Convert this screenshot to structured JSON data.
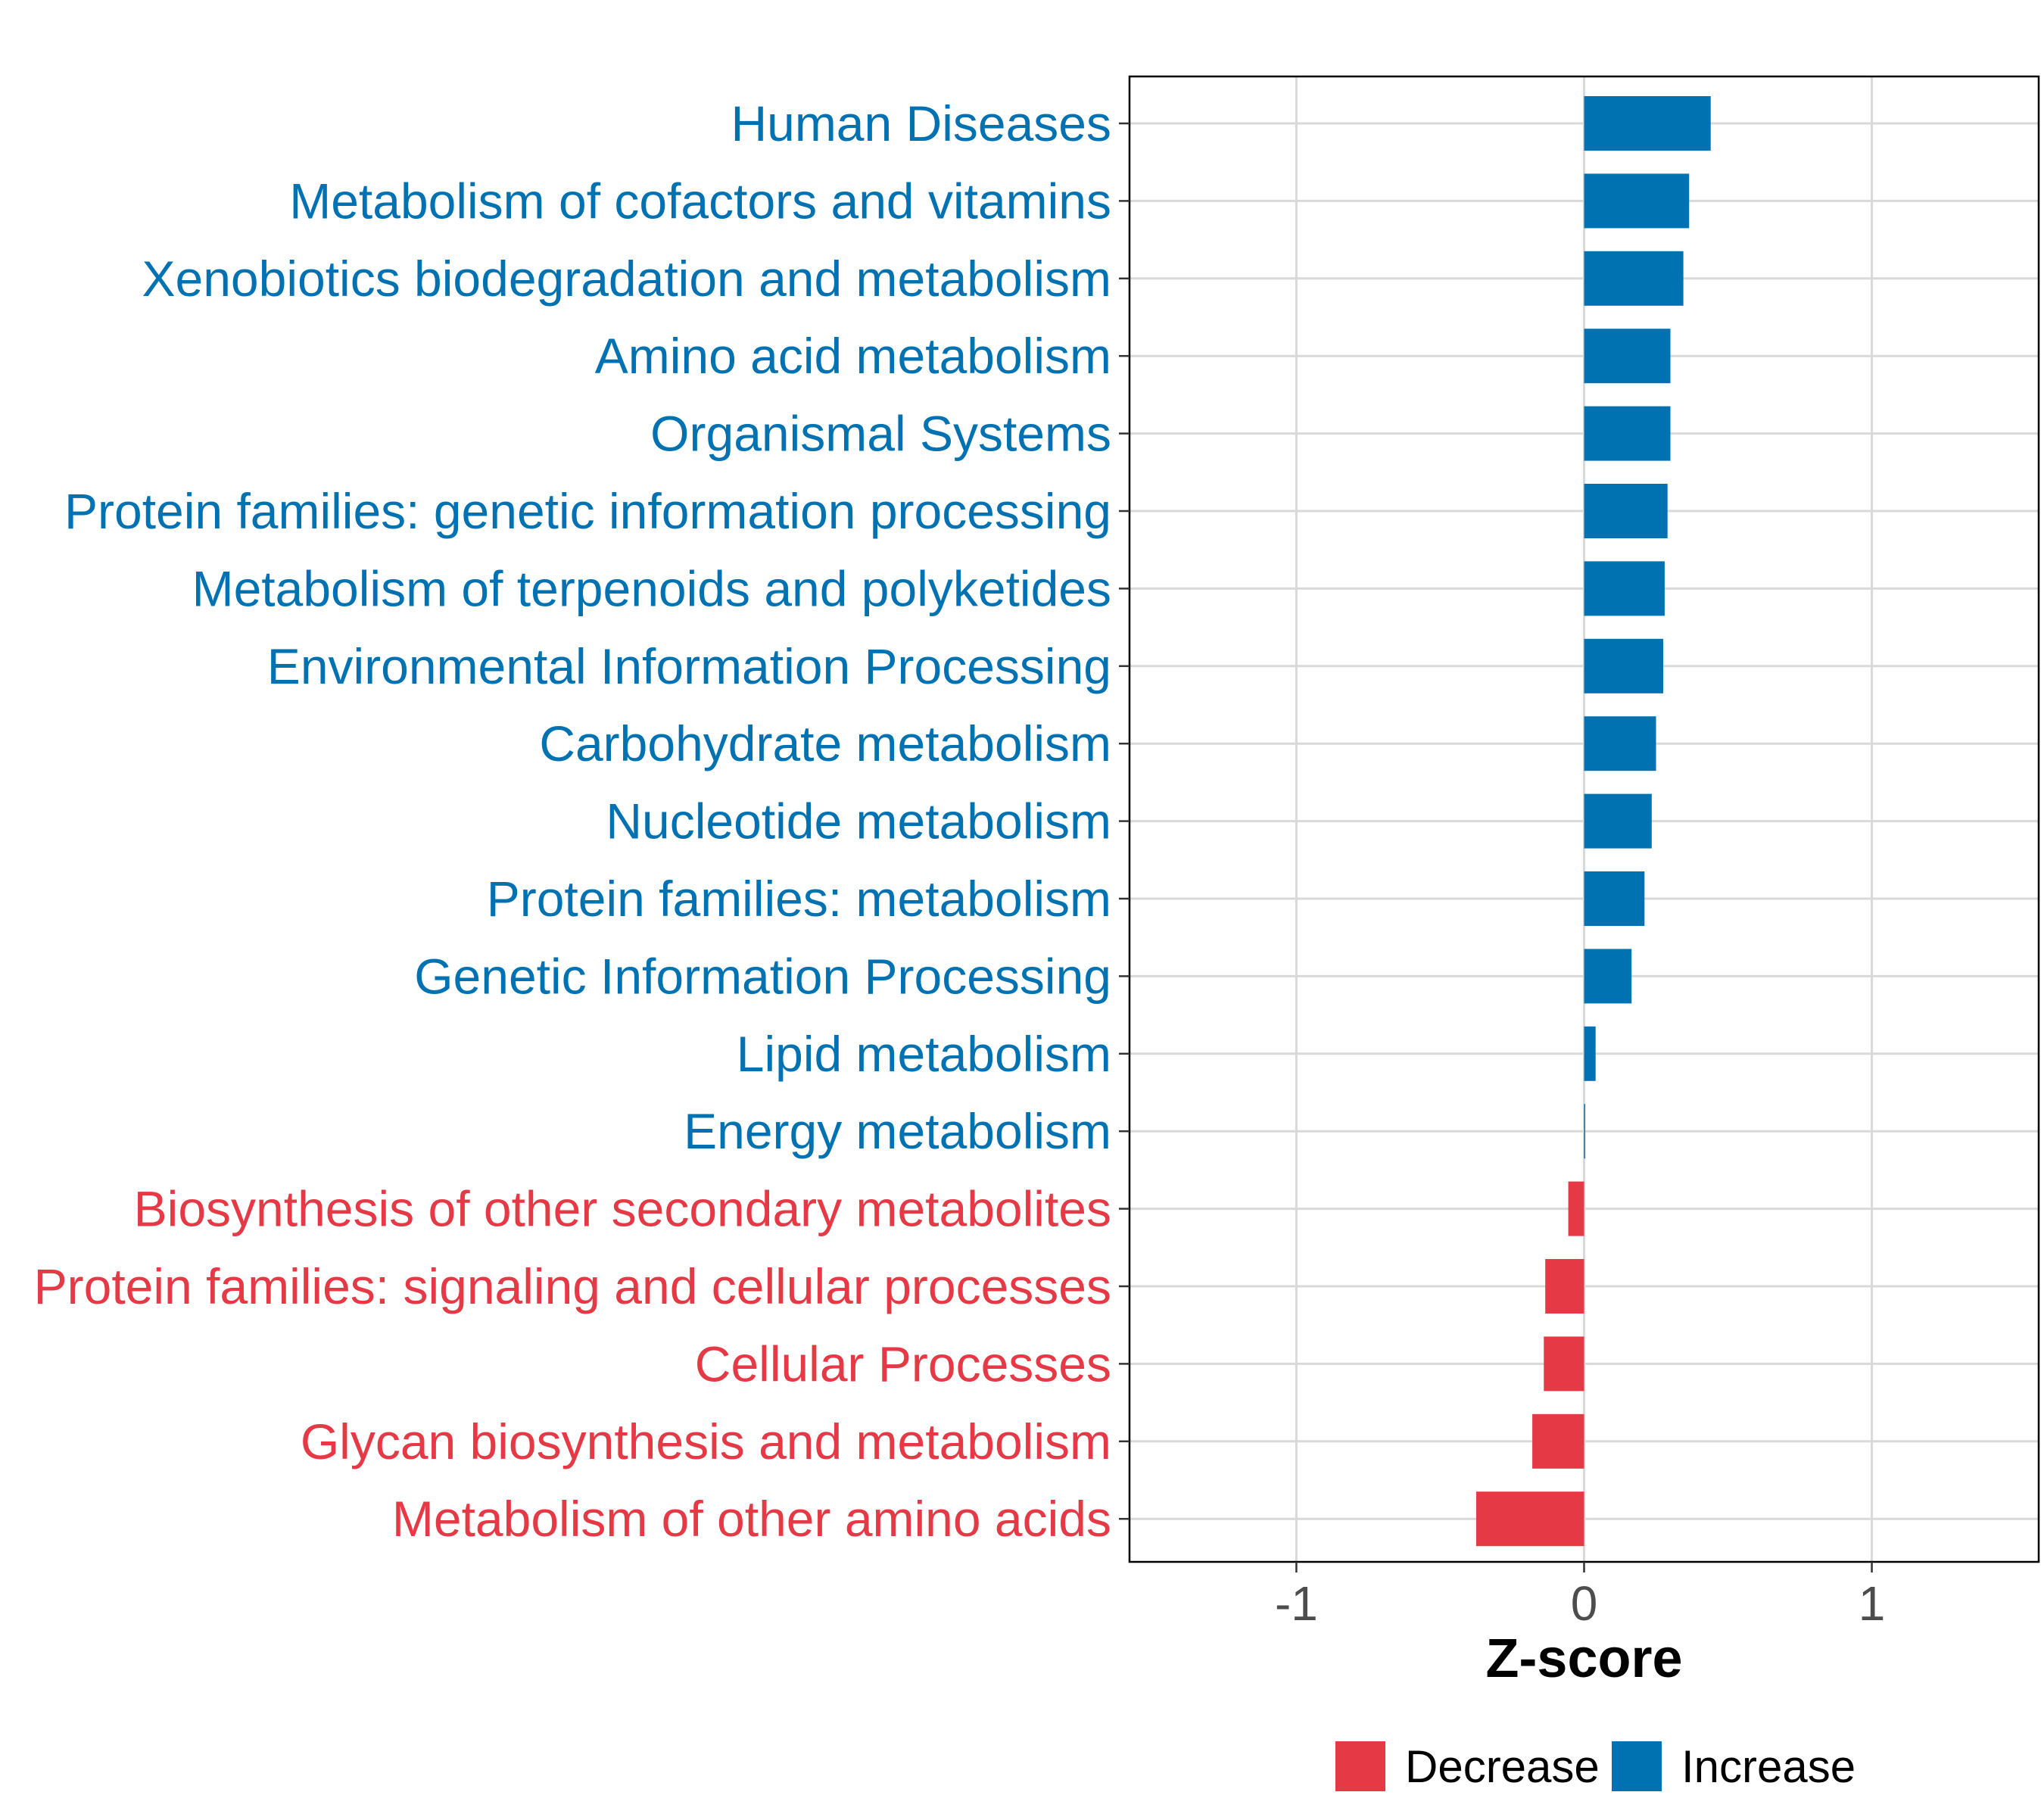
{
  "chart_data": {
    "type": "bar",
    "orientation": "horizontal",
    "xlabel": "Z-score",
    "xlim": [
      -1.58,
      1.58
    ],
    "xticks": [
      -1,
      0,
      1
    ],
    "xtick_labels": [
      "-1",
      "0",
      "1"
    ],
    "grid": true,
    "categories": [
      "Human Diseases",
      "Metabolism of cofactors and vitamins",
      "Xenobiotics biodegradation and metabolism",
      "Amino acid metabolism",
      "Organismal Systems",
      "Protein families: genetic information processing",
      "Metabolism of terpenoids and polyketides",
      "Environmental Information Processing",
      "Carbohydrate metabolism",
      "Nucleotide metabolism",
      "Protein families: metabolism",
      "Genetic Information Processing",
      "Lipid metabolism",
      "Energy metabolism",
      "Biosynthesis of other secondary metabolites",
      "Protein families: signaling and cellular processes",
      "Cellular Processes",
      "Glycan biosynthesis and metabolism",
      "Metabolism of other amino acids"
    ],
    "values": [
      0.44,
      0.365,
      0.345,
      0.3,
      0.3,
      0.29,
      0.28,
      0.275,
      0.25,
      0.235,
      0.21,
      0.165,
      0.04,
      0.003,
      -0.055,
      -0.135,
      -0.14,
      -0.18,
      -0.375
    ],
    "groups": [
      "Increase",
      "Increase",
      "Increase",
      "Increase",
      "Increase",
      "Increase",
      "Increase",
      "Increase",
      "Increase",
      "Increase",
      "Increase",
      "Increase",
      "Increase",
      "Increase",
      "Decrease",
      "Decrease",
      "Decrease",
      "Decrease",
      "Decrease"
    ],
    "legend": {
      "position": "bottom",
      "items": [
        {
          "label": "Decrease",
          "color": "#E63946"
        },
        {
          "label": "Increase",
          "color": "#0072B2"
        }
      ]
    },
    "colors": {
      "Decrease": "#E63946",
      "Increase": "#0072B2"
    }
  }
}
